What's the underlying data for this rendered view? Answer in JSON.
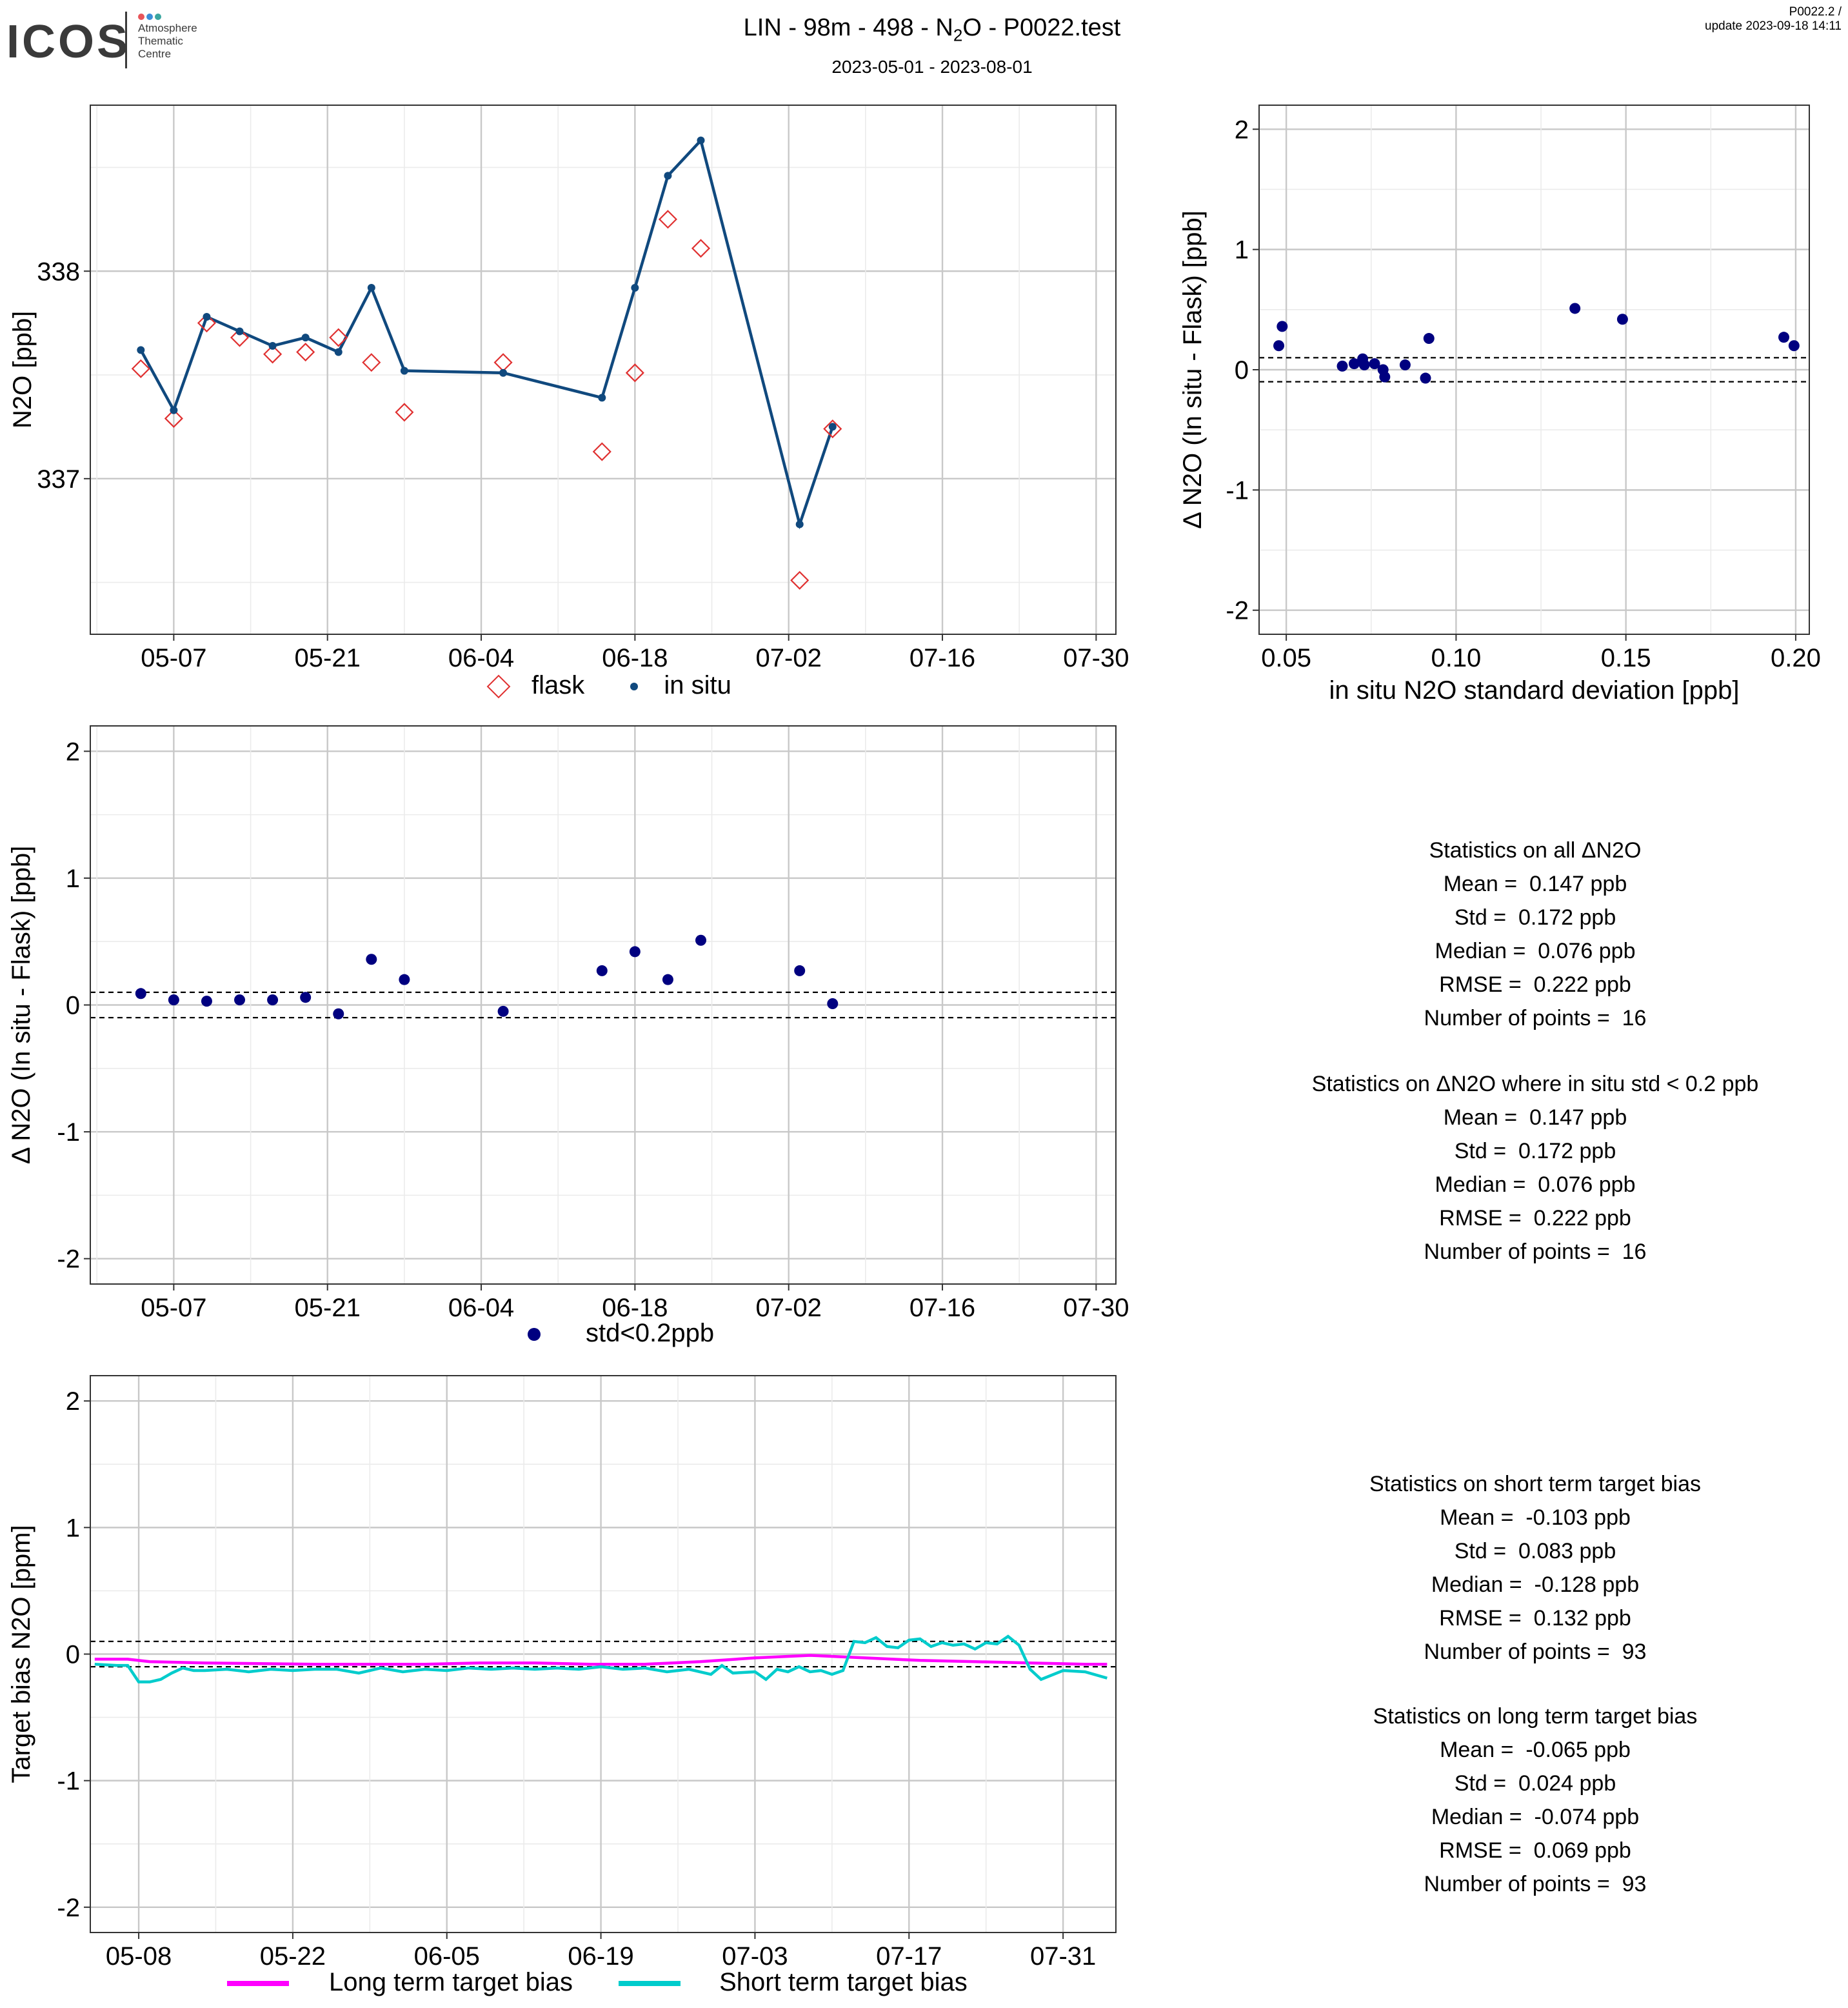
{
  "header": {
    "title_prefix": "LIN - 98m - 498 - N",
    "title_sub": "2",
    "title_suffix": "O - P0022.test",
    "period": "2023-05-01 - 2023-08-01",
    "version": "P0022.2 /",
    "update": "update  2023-09-18 14:11"
  },
  "logo": {
    "text": "ICOS",
    "subtitle_lines": [
      "Atmosphere",
      "Thematic",
      "Centre"
    ],
    "dot_colors": [
      "#e8555a",
      "#3b8ed8",
      "#3aa6a0"
    ]
  },
  "colors": {
    "insitu": "#10497e",
    "flask": "#e03030",
    "delta": "#000080",
    "long_term": "#ff00ff",
    "short_term": "#00cccc",
    "grid_major": "#c8c8c8",
    "grid_minor": "#ebebeb"
  },
  "chart_data": [
    {
      "id": "timeseries",
      "type": "line",
      "ylabel": "N2O [ppb]",
      "ylim": [
        336.25,
        338.8
      ],
      "yticks": [
        337,
        338
      ],
      "xticks": [
        "05-07",
        "05-21",
        "06-04",
        "06-18",
        "07-02",
        "07-16",
        "07-30"
      ],
      "grid": true,
      "series": [
        {
          "name": "in situ",
          "style": "line-points",
          "x": [
            "2023-05-04",
            "2023-05-07",
            "2023-05-10",
            "2023-05-13",
            "2023-05-16",
            "2023-05-19",
            "2023-05-22",
            "2023-05-25",
            "2023-05-28",
            "2023-06-06",
            "2023-06-15",
            "2023-06-18",
            "2023-06-21",
            "2023-06-24",
            "2023-07-03",
            "2023-07-06"
          ],
          "y": [
            337.62,
            337.33,
            337.78,
            337.71,
            337.64,
            337.68,
            337.61,
            337.92,
            337.52,
            337.51,
            337.39,
            337.92,
            338.46,
            338.63,
            336.78,
            337.25
          ]
        },
        {
          "name": "flask",
          "style": "diamond-open",
          "x": [
            "2023-05-04",
            "2023-05-07",
            "2023-05-10",
            "2023-05-13",
            "2023-05-16",
            "2023-05-19",
            "2023-05-22",
            "2023-05-25",
            "2023-05-28",
            "2023-06-06",
            "2023-06-15",
            "2023-06-18",
            "2023-06-21",
            "2023-06-24",
            "2023-07-03",
            "2023-07-06"
          ],
          "y": [
            337.53,
            337.29,
            337.75,
            337.68,
            337.6,
            337.61,
            337.68,
            337.56,
            337.32,
            337.56,
            337.13,
            337.51,
            338.25,
            338.11,
            336.51,
            337.24
          ]
        }
      ]
    },
    {
      "id": "delta_vs_std",
      "type": "scatter",
      "xlabel": "in situ N2O standard deviation [ppb]",
      "ylabel": "Δ N2O (In situ - Flask) [ppb]",
      "xlim": [
        0.042,
        0.204
      ],
      "ylim": [
        -2.2,
        2.2
      ],
      "xticks": [
        0.05,
        0.1,
        0.15,
        0.2
      ],
      "xtick_labels": [
        "0.05",
        "0.10",
        "0.15",
        "0.20"
      ],
      "yticks": [
        -2,
        -1,
        0,
        1,
        2
      ],
      "thresholds": [
        0.1,
        -0.1
      ],
      "x": [
        0.0478,
        0.0488,
        0.0665,
        0.07,
        0.0725,
        0.073,
        0.076,
        0.0785,
        0.079,
        0.085,
        0.091,
        0.092,
        0.135,
        0.149,
        0.1965,
        0.1995
      ],
      "y": [
        0.2,
        0.36,
        0.03,
        0.05,
        0.09,
        0.04,
        0.05,
        0.0,
        -0.06,
        0.04,
        -0.07,
        0.26,
        0.51,
        0.42,
        0.27,
        0.2
      ]
    },
    {
      "id": "delta_time",
      "type": "scatter",
      "ylabel": "Δ N2O (In situ - Flask) [ppb]",
      "ylim": [
        -2.2,
        2.2
      ],
      "yticks": [
        -2,
        -1,
        0,
        1,
        2
      ],
      "xticks": [
        "05-07",
        "05-21",
        "06-04",
        "06-18",
        "07-02",
        "07-16",
        "07-30"
      ],
      "thresholds": [
        0.1,
        -0.1
      ],
      "series": [
        {
          "name": "std<0.2ppb",
          "x": [
            "2023-05-04",
            "2023-05-07",
            "2023-05-10",
            "2023-05-13",
            "2023-05-16",
            "2023-05-19",
            "2023-05-22",
            "2023-05-25",
            "2023-05-28",
            "2023-06-06",
            "2023-06-15",
            "2023-06-18",
            "2023-06-21",
            "2023-06-24",
            "2023-07-03",
            "2023-07-06"
          ],
          "y": [
            0.09,
            0.04,
            0.03,
            0.04,
            0.04,
            0.06,
            -0.07,
            0.36,
            0.2,
            -0.05,
            0.27,
            0.42,
            0.2,
            0.51,
            0.27,
            0.01
          ]
        }
      ]
    },
    {
      "id": "target_bias",
      "type": "line",
      "ylabel": "Target bias N2O [ppm]",
      "ylim": [
        -2.2,
        2.2
      ],
      "yticks": [
        -2,
        -1,
        0,
        1,
        2
      ],
      "xticks": [
        "05-08",
        "05-22",
        "06-05",
        "06-19",
        "07-03",
        "07-17",
        "07-31"
      ],
      "thresholds": [
        0.1,
        -0.1
      ],
      "series": [
        {
          "name": "Long term target bias",
          "color_key": "long_term",
          "x_day_offsets": [
            0,
            3,
            5,
            10,
            20,
            30,
            35,
            40,
            45,
            50,
            55,
            60,
            65,
            70,
            75,
            80,
            85,
            90,
            92
          ],
          "y": [
            -0.04,
            -0.04,
            -0.06,
            -0.07,
            -0.08,
            -0.08,
            -0.07,
            -0.07,
            -0.08,
            -0.08,
            -0.06,
            -0.03,
            -0.01,
            -0.03,
            -0.05,
            -0.06,
            -0.07,
            -0.08,
            -0.08
          ]
        },
        {
          "name": "Short term target bias",
          "color_key": "short_term",
          "x_day_offsets": [
            0,
            2,
            3,
            4,
            5,
            6,
            7,
            8,
            9,
            10,
            12,
            14,
            16,
            18,
            20,
            22,
            24,
            26,
            28,
            30,
            32,
            34,
            36,
            38,
            40,
            42,
            44,
            46,
            48,
            50,
            52,
            54,
            56,
            57,
            58,
            60,
            61,
            62,
            63,
            64,
            65,
            66,
            67,
            68,
            69,
            70,
            71,
            72,
            73,
            74,
            75,
            76,
            77,
            78,
            79,
            80,
            81,
            82,
            83,
            84,
            85,
            86,
            88,
            90,
            92
          ],
          "y": [
            -0.08,
            -0.09,
            -0.09,
            -0.22,
            -0.22,
            -0.2,
            -0.15,
            -0.11,
            -0.13,
            -0.13,
            -0.12,
            -0.14,
            -0.12,
            -0.13,
            -0.12,
            -0.12,
            -0.15,
            -0.11,
            -0.14,
            -0.12,
            -0.13,
            -0.11,
            -0.12,
            -0.11,
            -0.12,
            -0.11,
            -0.12,
            -0.1,
            -0.12,
            -0.11,
            -0.14,
            -0.12,
            -0.16,
            -0.09,
            -0.15,
            -0.14,
            -0.2,
            -0.12,
            -0.14,
            -0.1,
            -0.14,
            -0.13,
            -0.16,
            -0.13,
            0.1,
            0.09,
            0.13,
            0.06,
            0.05,
            0.11,
            0.12,
            0.06,
            0.09,
            0.07,
            0.08,
            0.04,
            0.09,
            0.08,
            0.14,
            0.07,
            -0.12,
            -0.2,
            -0.13,
            -0.14,
            -0.19
          ]
        }
      ]
    }
  ],
  "stats_delta": {
    "all": {
      "heading": "Statistics on all ΔN2O",
      "mean": "Mean =  0.147 ppb",
      "std": "Std =  0.172 ppb",
      "median": "Median =  0.076 ppb",
      "rmse": "RMSE =  0.222 ppb",
      "n": "Number of points =  16"
    },
    "filtered": {
      "heading": "Statistics on ΔN2O where in situ std < 0.2 ppb",
      "mean": "Mean =  0.147 ppb",
      "std": "Std =  0.172 ppb",
      "median": "Median =  0.076 ppb",
      "rmse": "RMSE =  0.222 ppb",
      "n": "Number of points =  16"
    }
  },
  "stats_target": {
    "short": {
      "heading": "Statistics on short term target bias",
      "mean": "Mean =  -0.103 ppb",
      "std": "Std =  0.083 ppb",
      "median": "Median =  -0.128 ppb",
      "rmse": "RMSE =  0.132 ppb",
      "n": "Number of points =  93"
    },
    "long": {
      "heading": "Statistics on long term target bias",
      "mean": "Mean =  -0.065 ppb",
      "std": "Std =  0.024 ppb",
      "median": "Median =  -0.074 ppb",
      "rmse": "RMSE =  0.069 ppb",
      "n": "Number of points =  93"
    }
  },
  "legends": {
    "timeseries": [
      "flask",
      "in situ"
    ],
    "delta_time": [
      "std<0.2ppb"
    ],
    "target_bias": [
      "Long term target bias",
      "Short term target bias"
    ]
  }
}
